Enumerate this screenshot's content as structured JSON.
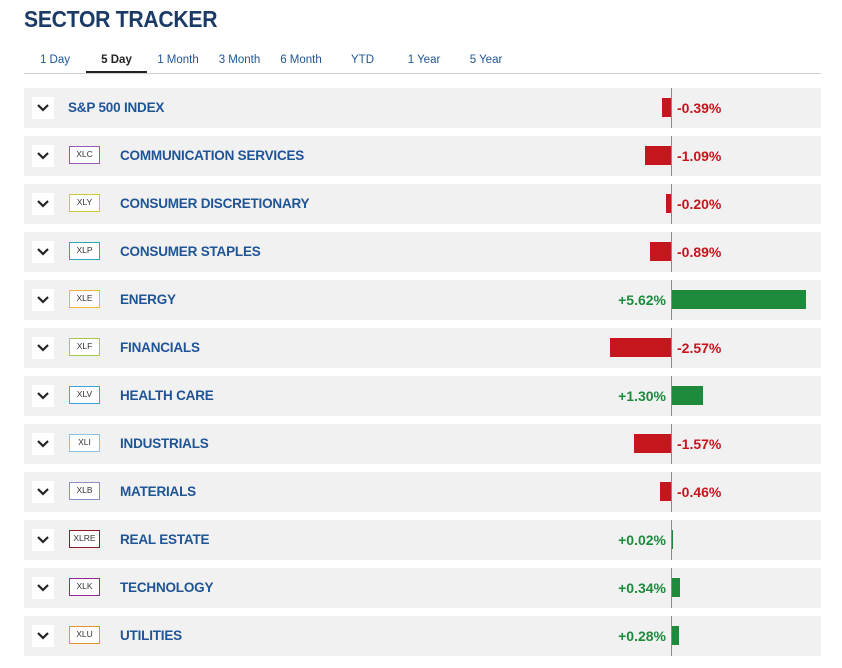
{
  "title": "SECTOR TRACKER",
  "tabs": [
    {
      "label": "1 Day",
      "active": false
    },
    {
      "label": "5 Day",
      "active": true
    },
    {
      "label": "1 Month",
      "active": false
    },
    {
      "label": "3 Month",
      "active": false
    },
    {
      "label": "6 Month",
      "active": false
    },
    {
      "label": "YTD",
      "active": false
    },
    {
      "label": "1 Year",
      "active": false
    },
    {
      "label": "5 Year",
      "active": false
    }
  ],
  "colors": {
    "negative": "#c4161c",
    "positive": "#1e8a3c"
  },
  "rows": [
    {
      "ticker": "",
      "name": "S&P 500 INDEX",
      "change": -0.39,
      "display": "-0.39%",
      "ticker_color": ""
    },
    {
      "ticker": "XLC",
      "name": "COMMUNICATION SERVICES",
      "change": -1.09,
      "display": "-1.09%",
      "ticker_color": "#9b59b6"
    },
    {
      "ticker": "XLY",
      "name": "CONSUMER DISCRETIONARY",
      "change": -0.2,
      "display": "-0.20%",
      "ticker_color": "#c9c93a"
    },
    {
      "ticker": "XLP",
      "name": "CONSUMER STAPLES",
      "change": -0.89,
      "display": "-0.89%",
      "ticker_color": "#2aa8b5"
    },
    {
      "ticker": "XLE",
      "name": "ENERGY",
      "change": 5.62,
      "display": "+5.62%",
      "ticker_color": "#e8b83a"
    },
    {
      "ticker": "XLF",
      "name": "FINANCIALS",
      "change": -2.57,
      "display": "-2.57%",
      "ticker_color": "#a8c94a"
    },
    {
      "ticker": "XLV",
      "name": "HEALTH CARE",
      "change": 1.3,
      "display": "+1.30%",
      "ticker_color": "#3aa6d8"
    },
    {
      "ticker": "XLI",
      "name": "INDUSTRIALS",
      "change": -1.57,
      "display": "-1.57%",
      "ticker_color": "#8fc1e6"
    },
    {
      "ticker": "XLB",
      "name": "MATERIALS",
      "change": -0.46,
      "display": "-0.46%",
      "ticker_color": "#8a8fc9"
    },
    {
      "ticker": "XLRE",
      "name": "REAL ESTATE",
      "change": 0.02,
      "display": "+0.02%",
      "ticker_color": "#8b1a2b"
    },
    {
      "ticker": "XLK",
      "name": "TECHNOLOGY",
      "change": 0.34,
      "display": "+0.34%",
      "ticker_color": "#8e2a8e"
    },
    {
      "ticker": "XLU",
      "name": "UTILITIES",
      "change": 0.28,
      "display": "+0.28%",
      "ticker_color": "#e8962a"
    }
  ]
}
